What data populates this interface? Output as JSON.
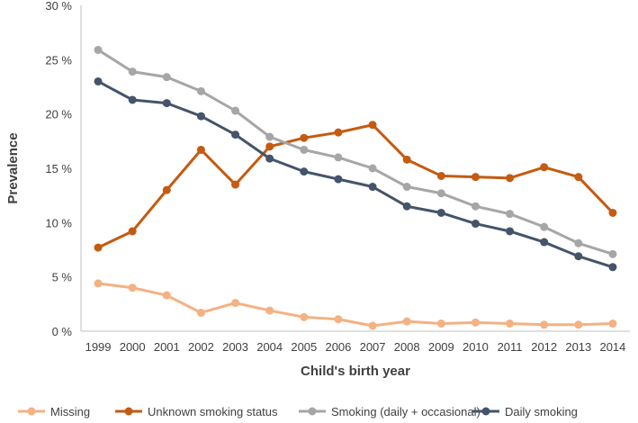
{
  "chart_data": {
    "type": "line",
    "title": "",
    "xlabel": "Child's birth year",
    "ylabel": "Prevalence",
    "x": [
      "1999",
      "2000",
      "2001",
      "2002",
      "2003",
      "2004",
      "2005",
      "2006",
      "2007",
      "2008",
      "2009",
      "2010",
      "2011",
      "2012",
      "2013",
      "2014"
    ],
    "ylim": [
      0,
      30
    ],
    "yticks": [
      0,
      5,
      10,
      15,
      20,
      25,
      30
    ],
    "ytick_labels": [
      "0 %",
      "5 %",
      "10 %",
      "15 %",
      "20 %",
      "25 %",
      "30 %"
    ],
    "grid": false,
    "legend_position": "bottom",
    "series": [
      {
        "name": "Missing",
        "color": "#F4B183",
        "values": [
          4.4,
          4.0,
          3.3,
          1.7,
          2.6,
          1.9,
          1.3,
          1.1,
          0.5,
          0.9,
          0.7,
          0.8,
          0.7,
          0.6,
          0.6,
          0.7
        ]
      },
      {
        "name": "Unknown smoking status",
        "color": "#C55A11",
        "values": [
          7.7,
          9.2,
          13.0,
          16.7,
          13.5,
          17.0,
          17.8,
          18.3,
          19.0,
          15.8,
          14.3,
          14.2,
          14.1,
          15.1,
          14.2,
          10.9
        ]
      },
      {
        "name": "Smoking (daily + occasional)",
        "color": "#A6A6A6",
        "values": [
          25.9,
          23.9,
          23.4,
          22.1,
          20.3,
          17.9,
          16.7,
          16.0,
          15.0,
          13.3,
          12.7,
          11.5,
          10.8,
          9.6,
          8.1,
          7.1
        ]
      },
      {
        "name": "Daily smoking",
        "color": "#44546A",
        "values": [
          23.0,
          21.3,
          21.0,
          19.8,
          18.1,
          15.9,
          14.7,
          14.0,
          13.3,
          11.5,
          10.9,
          9.9,
          9.2,
          8.2,
          6.9,
          5.9
        ]
      }
    ]
  }
}
